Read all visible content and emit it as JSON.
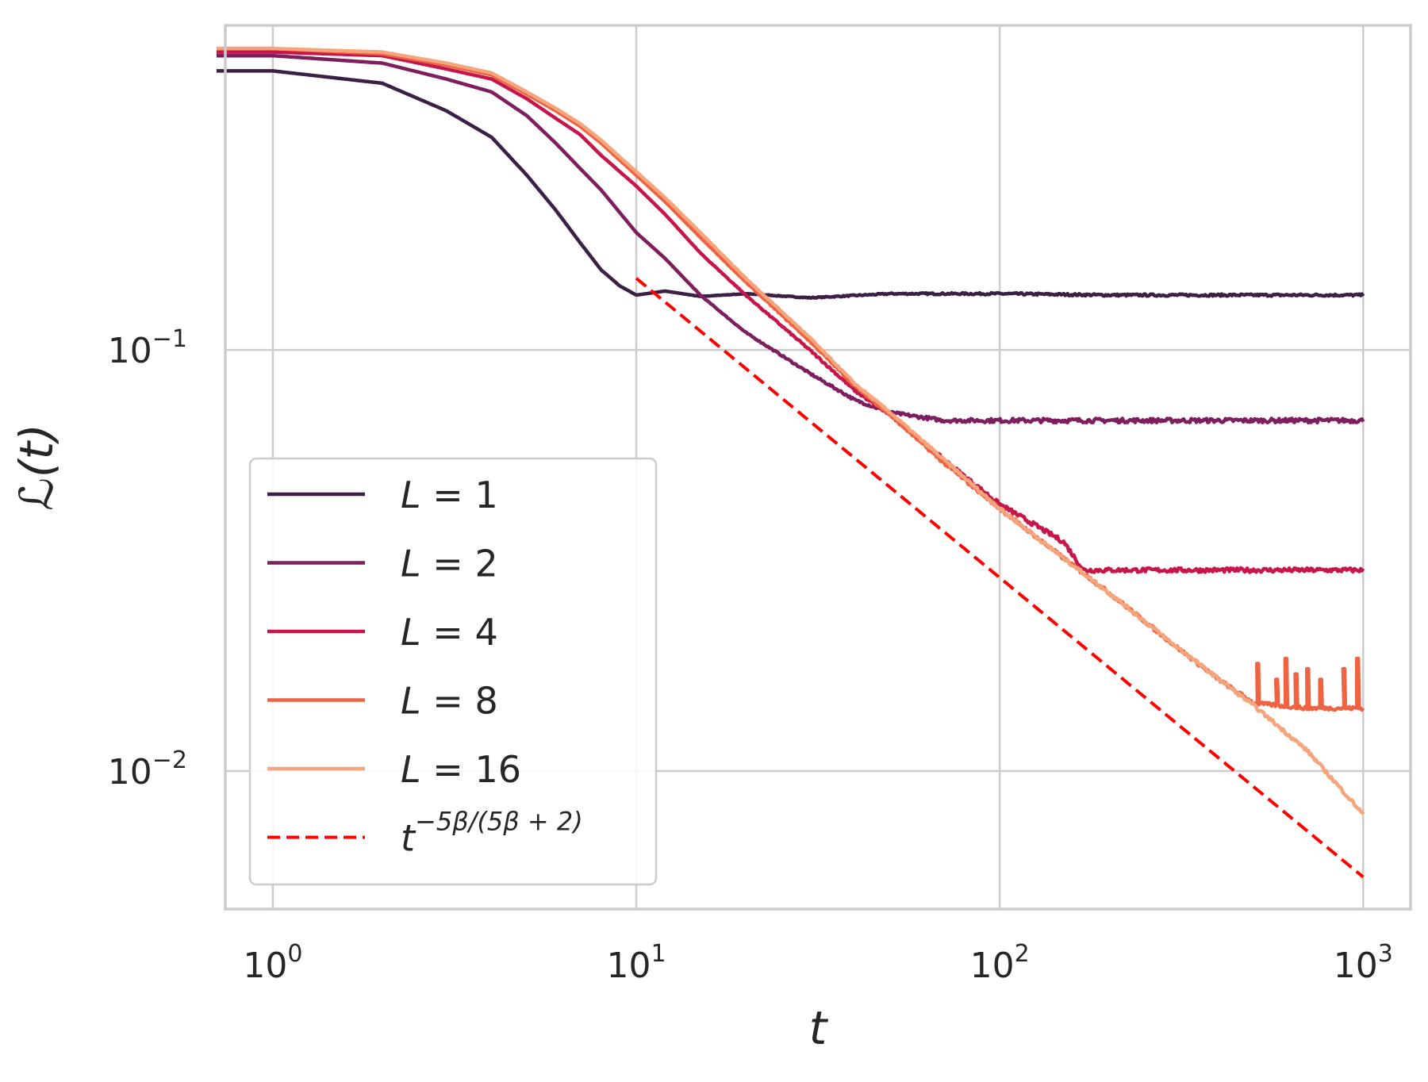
{
  "chart_data": {
    "type": "line",
    "xscale": "log",
    "yscale": "log",
    "xlabel": "t",
    "ylabel": "ℒ(t)",
    "xlim": [
      0.74,
      1350
    ],
    "ylim": [
      0.0047,
      0.59
    ],
    "xticks": [
      {
        "value": 1,
        "base": "10",
        "exp": "0"
      },
      {
        "value": 10,
        "base": "10",
        "exp": "1"
      },
      {
        "value": 100,
        "base": "10",
        "exp": "2"
      },
      {
        "value": 1000,
        "base": "10",
        "exp": "3"
      }
    ],
    "yticks": [
      {
        "value": 0.1,
        "base": "10",
        "exp": "−1"
      },
      {
        "value": 0.01,
        "base": "10",
        "exp": "−2"
      }
    ],
    "grid": true,
    "legend_position": "lower-left",
    "series": [
      {
        "name": "L = 1",
        "var": "L",
        "eq": " = ",
        "num": "1",
        "color": "#3b1f45",
        "style": "solid",
        "points": [
          [
            0.7,
            0.46
          ],
          [
            1,
            0.46
          ],
          [
            2,
            0.43
          ],
          [
            3,
            0.37
          ],
          [
            4,
            0.32
          ],
          [
            5,
            0.26
          ],
          [
            6,
            0.215
          ],
          [
            7,
            0.18
          ],
          [
            8,
            0.155
          ],
          [
            9,
            0.142
          ],
          [
            10,
            0.135
          ],
          [
            12,
            0.138
          ],
          [
            15,
            0.134
          ],
          [
            20,
            0.136
          ],
          [
            30,
            0.133
          ],
          [
            50,
            0.136
          ],
          [
            100,
            0.136
          ],
          [
            200,
            0.135
          ],
          [
            500,
            0.135
          ],
          [
            1000,
            0.135
          ]
        ],
        "noise": 0.006
      },
      {
        "name": "L = 2",
        "var": "L",
        "eq": " = ",
        "num": "2",
        "color": "#7e1e5e",
        "style": "solid",
        "points": [
          [
            0.7,
            0.5
          ],
          [
            1,
            0.5
          ],
          [
            2,
            0.48
          ],
          [
            3,
            0.44
          ],
          [
            4,
            0.41
          ],
          [
            5,
            0.36
          ],
          [
            6,
            0.31
          ],
          [
            7,
            0.27
          ],
          [
            8,
            0.24
          ],
          [
            10,
            0.19
          ],
          [
            12,
            0.165
          ],
          [
            15,
            0.135
          ],
          [
            20,
            0.11
          ],
          [
            30,
            0.088
          ],
          [
            40,
            0.076
          ],
          [
            50,
            0.071
          ],
          [
            70,
            0.068
          ],
          [
            100,
            0.068
          ],
          [
            200,
            0.068
          ],
          [
            500,
            0.068
          ],
          [
            1000,
            0.068
          ]
        ],
        "noise": 0.012
      },
      {
        "name": "L = 4",
        "var": "L",
        "eq": " = ",
        "num": "4",
        "color": "#c7174a",
        "style": "solid",
        "points": [
          [
            0.7,
            0.51
          ],
          [
            1,
            0.51
          ],
          [
            2,
            0.5
          ],
          [
            3,
            0.465
          ],
          [
            4,
            0.44
          ],
          [
            5,
            0.395
          ],
          [
            6,
            0.355
          ],
          [
            7,
            0.325
          ],
          [
            8,
            0.29
          ],
          [
            10,
            0.245
          ],
          [
            12,
            0.21
          ],
          [
            15,
            0.17
          ],
          [
            20,
            0.135
          ],
          [
            30,
            0.1
          ],
          [
            40,
            0.08
          ],
          [
            50,
            0.07
          ],
          [
            70,
            0.055
          ],
          [
            100,
            0.043
          ],
          [
            150,
            0.035
          ],
          [
            170,
            0.03
          ],
          [
            200,
            0.03
          ],
          [
            500,
            0.03
          ],
          [
            1000,
            0.03
          ]
        ],
        "noise": 0.012
      },
      {
        "name": "L = 8",
        "var": "L",
        "eq": " = ",
        "num": "8",
        "color": "#ee6342",
        "style": "solid",
        "points": [
          [
            0.7,
            0.52
          ],
          [
            1,
            0.52
          ],
          [
            2,
            0.505
          ],
          [
            3,
            0.475
          ],
          [
            4,
            0.45
          ],
          [
            5,
            0.405
          ],
          [
            6,
            0.37
          ],
          [
            7,
            0.34
          ],
          [
            8,
            0.31
          ],
          [
            10,
            0.26
          ],
          [
            12,
            0.225
          ],
          [
            15,
            0.185
          ],
          [
            20,
            0.145
          ],
          [
            30,
            0.105
          ],
          [
            40,
            0.082
          ],
          [
            50,
            0.07
          ],
          [
            70,
            0.054
          ],
          [
            100,
            0.042
          ],
          [
            150,
            0.032
          ],
          [
            200,
            0.0265
          ],
          [
            300,
            0.02
          ],
          [
            400,
            0.0165
          ],
          [
            500,
            0.0145
          ],
          [
            700,
            0.0141
          ],
          [
            1000,
            0.0141
          ]
        ],
        "noise": 0.01,
        "spikes": [
          [
            510,
            0.018
          ],
          [
            575,
            0.0165
          ],
          [
            610,
            0.0185
          ],
          [
            650,
            0.017
          ],
          [
            700,
            0.0175
          ],
          [
            760,
            0.0165
          ],
          [
            880,
            0.0175
          ],
          [
            960,
            0.0185
          ]
        ]
      },
      {
        "name": "L = 16",
        "var": "L",
        "eq": " = ",
        "num": "16",
        "color": "#f6a47c",
        "style": "solid",
        "points": [
          [
            0.7,
            0.52
          ],
          [
            1,
            0.52
          ],
          [
            2,
            0.51
          ],
          [
            3,
            0.48
          ],
          [
            4,
            0.455
          ],
          [
            5,
            0.41
          ],
          [
            6,
            0.375
          ],
          [
            7,
            0.345
          ],
          [
            8,
            0.315
          ],
          [
            10,
            0.265
          ],
          [
            12,
            0.23
          ],
          [
            15,
            0.19
          ],
          [
            20,
            0.148
          ],
          [
            30,
            0.107
          ],
          [
            40,
            0.083
          ],
          [
            50,
            0.071
          ],
          [
            70,
            0.055
          ],
          [
            100,
            0.042
          ],
          [
            150,
            0.032
          ],
          [
            200,
            0.0265
          ],
          [
            300,
            0.02
          ],
          [
            500,
            0.0143
          ],
          [
            700,
            0.0112
          ],
          [
            1000,
            0.0079
          ]
        ],
        "noise": 0.009
      },
      {
        "name": "t^{-5β/(5β+2)}",
        "var": "t",
        "expText": "−5β/(5β + 2)",
        "color": "#ff0000",
        "style": "dashed",
        "points": [
          [
            10,
            0.148
          ],
          [
            1000,
            0.0056
          ]
        ],
        "noise": 0
      }
    ]
  }
}
